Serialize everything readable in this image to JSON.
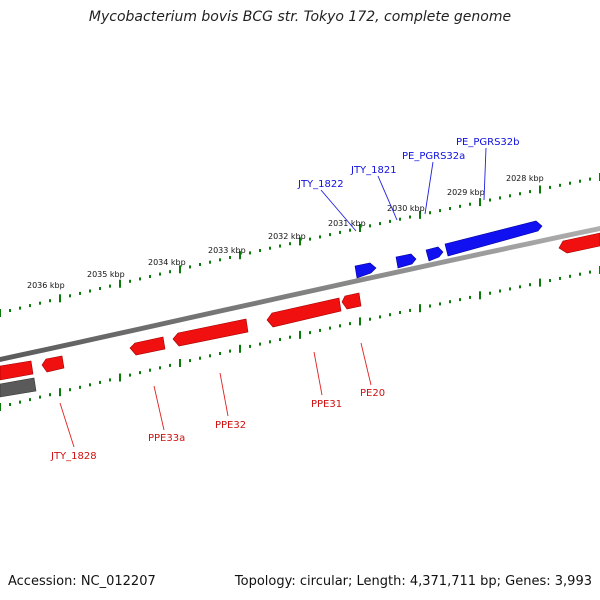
{
  "title": "Mycobacterium bovis BCG str. Tokyo 172, complete genome",
  "footer": {
    "accession": "Accession: NC_012207",
    "topology": "Topology: circular; Length: 4,371,711 bp; Genes: 3,993"
  },
  "colors": {
    "forward_strand": "#0000ee",
    "reverse_strand": "#ee0000",
    "backbone": "#808080",
    "ticks": "#006400",
    "rna_or_other": "#555555"
  },
  "scale_labels": [
    "2028 kbp",
    "2029 kbp",
    "2030 kbp",
    "2031 kbp",
    "2032 kbp",
    "2033 kbp",
    "2034 kbp",
    "2035 kbp",
    "2036 kbp"
  ],
  "genes_forward": [
    {
      "label": "PE_PGRS32b"
    },
    {
      "label": "PE_PGRS32a"
    },
    {
      "label": "JTY_1821"
    },
    {
      "label": "JTY_1822"
    }
  ],
  "genes_reverse": [
    {
      "label": "PE20"
    },
    {
      "label": "PPE31"
    },
    {
      "label": "PPE32"
    },
    {
      "label": "PPE33a"
    },
    {
      "label": "JTY_1828"
    }
  ]
}
